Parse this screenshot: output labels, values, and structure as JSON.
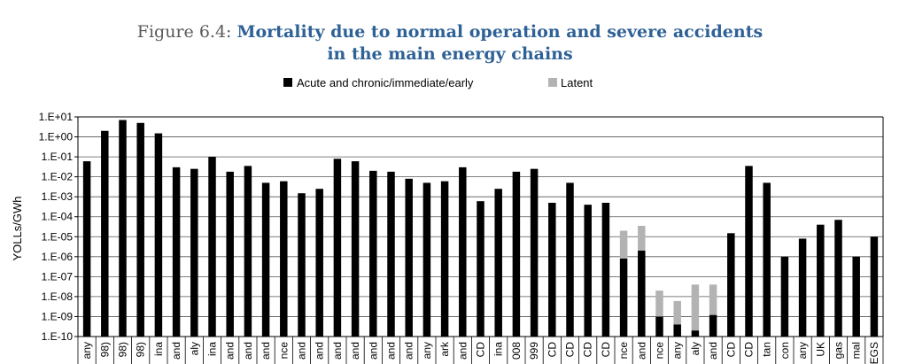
{
  "figure": {
    "label": "Figure 6.4:",
    "title_line1": "Mortality due to normal operation and severe accidents",
    "title_line2": "in the main energy chains"
  },
  "chart_data": {
    "type": "bar",
    "stacked": true,
    "yscale": "log",
    "ylabel": "YOLLs/GWh",
    "ylim": [
      "1.E-10",
      "1.E+01"
    ],
    "yticks": [
      "1.E+01",
      "1.E+00",
      "1.E-01",
      "1.E-02",
      "1.E-03",
      "1.E-04",
      "1.E-05",
      "1.E-06",
      "1.E-07",
      "1.E-08",
      "1.E-09",
      "1.E-10"
    ],
    "grid": true,
    "legend_position": "top",
    "categories": [
      "any",
      "98)",
      "98)",
      "98)",
      "ina",
      "and",
      "aly",
      "ina",
      "and",
      "and",
      "and",
      "nce",
      "and",
      "and",
      "and",
      "and",
      "and",
      "and",
      "and",
      "any",
      "ark",
      "and",
      "CD",
      "ina",
      "008",
      "999",
      "CD",
      "CD",
      "CD",
      "CD",
      "nce",
      "and",
      "nce",
      "any",
      "aly",
      "and",
      "CD",
      "CD",
      "tan",
      "con",
      "any",
      "UK",
      "gas",
      "mal",
      "EGS"
    ],
    "series": [
      {
        "name": "Acute and chronic/immediate/early",
        "color": "#000000",
        "values": [
          0.06,
          2,
          7,
          5,
          1.5,
          0.03,
          0.025,
          0.1,
          0.018,
          0.035,
          0.005,
          0.006,
          0.0015,
          0.0025,
          0.08,
          0.06,
          0.02,
          0.018,
          0.008,
          0.005,
          0.006,
          0.03,
          0.0006,
          0.0025,
          0.018,
          0.025,
          0.0005,
          0.005,
          0.0004,
          0.0005,
          8e-07,
          2e-06,
          1e-09,
          4e-10,
          2e-10,
          1.2e-09,
          1.5e-05,
          0.035,
          0.005,
          1e-06,
          8e-06,
          4e-05,
          7e-05,
          1e-06,
          1e-05
        ]
      },
      {
        "name": "Latent",
        "color": "#b3b3b3",
        "values": [
          null,
          null,
          null,
          null,
          null,
          null,
          null,
          null,
          null,
          null,
          null,
          null,
          null,
          null,
          null,
          null,
          null,
          null,
          null,
          null,
          null,
          null,
          null,
          null,
          null,
          null,
          null,
          null,
          null,
          null,
          2e-05,
          3.5e-05,
          2e-08,
          6e-09,
          4e-08,
          4e-08,
          null,
          null,
          null,
          null,
          null,
          null,
          null,
          null,
          null
        ]
      }
    ]
  }
}
